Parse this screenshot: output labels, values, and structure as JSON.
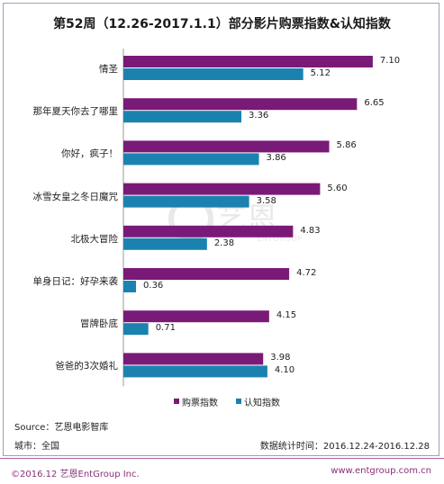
{
  "chart_data": {
    "type": "bar",
    "title": "第52周（12.26-2017.1.1）部分影片购票指数&认知指数",
    "categories": [
      "情圣",
      "那年夏天你去了哪里",
      "你好，疯子！",
      "冰雪女皇之冬日魔咒",
      "北极大冒险",
      "单身日记：好孕来袭",
      "冒牌卧底",
      "爸爸的3次婚礼"
    ],
    "series": [
      {
        "name": "购票指数",
        "color": "#7a1a78",
        "values": [
          7.1,
          6.65,
          5.86,
          5.6,
          4.83,
          4.72,
          4.15,
          3.98
        ]
      },
      {
        "name": "认知指数",
        "color": "#1b82b0",
        "values": [
          5.12,
          3.36,
          3.86,
          3.58,
          2.38,
          0.36,
          0.71,
          4.1
        ]
      }
    ],
    "value_labels": [
      [
        "7.10",
        "6.65",
        "5.86",
        "5.60",
        "4.83",
        "4.72",
        "4.15",
        "3.98"
      ],
      [
        "5.12",
        "3.36",
        "3.86",
        "3.58",
        "2.38",
        "0.36",
        "0.71",
        "4.10"
      ]
    ],
    "xlim": [
      0,
      8
    ],
    "orientation": "horizontal",
    "legend_position": "bottom"
  },
  "footer": {
    "source": "Source：艺恩电影智库",
    "city": "城市：全国",
    "period": "数据统计时间：2016.12.24-2016.12.28",
    "copyright": "©2016.12 艺恩EntGroup Inc.",
    "website": "www.entgroup.com.cn"
  },
  "watermark": {
    "text": "艺恩",
    "subtext": "ENTGROUP"
  }
}
